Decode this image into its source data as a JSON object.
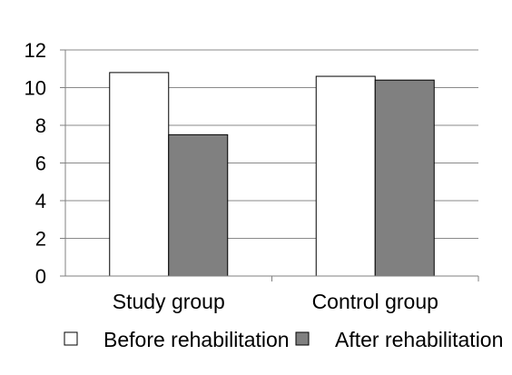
{
  "chart_data": {
    "type": "bar",
    "title": "",
    "xlabel": "",
    "ylabel": "",
    "categories": [
      "Study group",
      "Control group"
    ],
    "series": [
      {
        "name": "Before rehabilitation",
        "values": [
          10.8,
          10.6
        ],
        "color": "#ffffff"
      },
      {
        "name": "After rehabilitation",
        "values": [
          7.5,
          10.4
        ],
        "color": "#808080"
      }
    ],
    "ylim": [
      0,
      12
    ],
    "yticks": [
      "0",
      "2",
      "4",
      "6",
      "8",
      "10",
      "12"
    ],
    "grid": "horizontal",
    "legend_position": "bottom"
  }
}
